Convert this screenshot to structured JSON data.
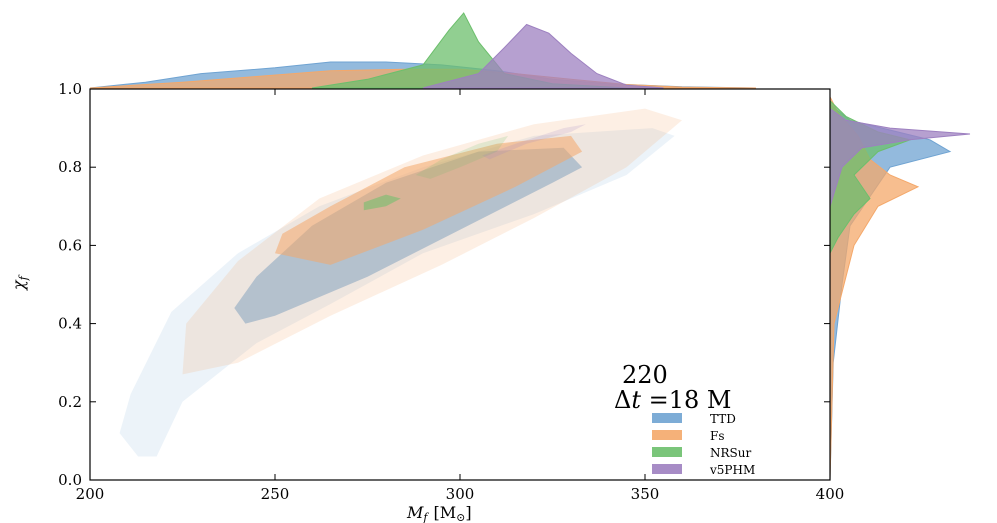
{
  "chart_data": {
    "type": "area",
    "xlabel": "M_f [M_☉]",
    "xlabel_main": "M",
    "xlabel_sub": "f",
    "xlabel_unit": "[M",
    "xlabel_unit_sub": "⊙",
    "xlabel_unit_close": "]",
    "ylabel": "χ_f",
    "ylabel_main": "χ",
    "ylabel_sub": "f",
    "xlim": [
      200,
      400
    ],
    "ylim": [
      0.0,
      1.0
    ],
    "xticks": [
      "200",
      "250",
      "300",
      "350",
      "400"
    ],
    "yticks": [
      "0.0",
      "0.2",
      "0.4",
      "0.6",
      "0.8",
      "1.0"
    ],
    "annotation": {
      "line1": "220",
      "line2_delta": "Δ",
      "line2_var": "t",
      "line2_rest": " =18 M"
    },
    "legend_position": "lower-right",
    "series": [
      {
        "name": "TTD",
        "color": "#6fa3d2",
        "marginal_x": [
          [
            200,
            0
          ],
          [
            215,
            0.02
          ],
          [
            230,
            0.05
          ],
          [
            250,
            0.07
          ],
          [
            265,
            0.09
          ],
          [
            280,
            0.09
          ],
          [
            295,
            0.08
          ],
          [
            310,
            0.06
          ],
          [
            325,
            0.03
          ],
          [
            340,
            0.015
          ],
          [
            360,
            0.004
          ],
          [
            380,
            0
          ]
        ],
        "marginal_y": [
          [
            0.0,
            0
          ],
          [
            0.3,
            0.008
          ],
          [
            0.5,
            0.03
          ],
          [
            0.65,
            0.05
          ],
          [
            0.8,
            0.15
          ],
          [
            0.84,
            0.3
          ],
          [
            0.87,
            0.25
          ],
          [
            0.92,
            0.05
          ],
          [
            0.96,
            0
          ]
        ],
        "contours": [
          [
            [
              213,
              0.06
            ],
            [
              218,
              0.06
            ],
            [
              225,
              0.2
            ],
            [
              245,
              0.35
            ],
            [
              265,
              0.45
            ],
            [
              290,
              0.58
            ],
            [
              320,
              0.68
            ],
            [
              345,
              0.78
            ],
            [
              358,
              0.88
            ],
            [
              352,
              0.9
            ],
            [
              320,
              0.88
            ],
            [
              290,
              0.8
            ],
            [
              262,
              0.7
            ],
            [
              240,
              0.58
            ],
            [
              222,
              0.43
            ],
            [
              211,
              0.22
            ],
            [
              208,
              0.12
            ]
          ],
          [
            [
              242,
              0.4
            ],
            [
              250,
              0.42
            ],
            [
              275,
              0.52
            ],
            [
              300,
              0.64
            ],
            [
              325,
              0.76
            ],
            [
              333,
              0.8
            ],
            [
              328,
              0.85
            ],
            [
              305,
              0.84
            ],
            [
              280,
              0.76
            ],
            [
              260,
              0.65
            ],
            [
              245,
              0.52
            ],
            [
              239,
              0.44
            ]
          ]
        ]
      },
      {
        "name": "Fs",
        "color": "#f4a86a",
        "marginal_x": [
          [
            200,
            0
          ],
          [
            225,
            0.02
          ],
          [
            245,
            0.04
          ],
          [
            265,
            0.06
          ],
          [
            285,
            0.065
          ],
          [
            300,
            0.065
          ],
          [
            315,
            0.05
          ],
          [
            330,
            0.03
          ],
          [
            345,
            0.012
          ],
          [
            360,
            0.003
          ],
          [
            380,
            0
          ]
        ],
        "marginal_y": [
          [
            0.0,
            0
          ],
          [
            0.4,
            0.01
          ],
          [
            0.6,
            0.06
          ],
          [
            0.7,
            0.12
          ],
          [
            0.75,
            0.22
          ],
          [
            0.78,
            0.15
          ],
          [
            0.82,
            0.1
          ],
          [
            0.88,
            0.07
          ],
          [
            0.94,
            0.02
          ],
          [
            0.98,
            0
          ]
        ],
        "contours": [
          [
            [
              225,
              0.27
            ],
            [
              240,
              0.3
            ],
            [
              265,
              0.42
            ],
            [
              295,
              0.55
            ],
            [
              320,
              0.67
            ],
            [
              345,
              0.8
            ],
            [
              360,
              0.92
            ],
            [
              350,
              0.95
            ],
            [
              320,
              0.91
            ],
            [
              290,
              0.83
            ],
            [
              262,
              0.72
            ],
            [
              240,
              0.56
            ],
            [
              226,
              0.4
            ]
          ],
          [
            [
              250,
              0.58
            ],
            [
              265,
              0.55
            ],
            [
              290,
              0.64
            ],
            [
              315,
              0.75
            ],
            [
              333,
              0.84
            ],
            [
              330,
              0.88
            ],
            [
              310,
              0.86
            ],
            [
              285,
              0.8
            ],
            [
              265,
              0.7
            ],
            [
              252,
              0.63
            ]
          ]
        ]
      },
      {
        "name": "NRSur",
        "color": "#6cbf6c",
        "marginal_x": [
          [
            260,
            0
          ],
          [
            275,
            0.03
          ],
          [
            290,
            0.08
          ],
          [
            297,
            0.2
          ],
          [
            301,
            0.26
          ],
          [
            305,
            0.16
          ],
          [
            312,
            0.05
          ],
          [
            325,
            0.015
          ],
          [
            345,
            0
          ]
        ],
        "marginal_y": [
          [
            0.58,
            0
          ],
          [
            0.62,
            0.02
          ],
          [
            0.68,
            0.06
          ],
          [
            0.72,
            0.1
          ],
          [
            0.78,
            0.06
          ],
          [
            0.84,
            0.12
          ],
          [
            0.87,
            0.2
          ],
          [
            0.89,
            0.12
          ],
          [
            0.93,
            0.04
          ],
          [
            0.97,
            0
          ]
        ],
        "contours": [
          [
            [
              288,
              0.78
            ],
            [
              295,
              0.82
            ],
            [
              305,
              0.86
            ],
            [
              313,
              0.88
            ],
            [
              310,
              0.84
            ],
            [
              300,
              0.8
            ],
            [
              292,
              0.77
            ]
          ],
          [
            [
              274,
              0.69
            ],
            [
              280,
              0.7
            ],
            [
              284,
              0.72
            ],
            [
              280,
              0.73
            ],
            [
              274,
              0.71
            ]
          ]
        ]
      },
      {
        "name": "v5PHM",
        "color": "#9d80c0",
        "marginal_x": [
          [
            290,
            0
          ],
          [
            305,
            0.05
          ],
          [
            312,
            0.14
          ],
          [
            318,
            0.22
          ],
          [
            324,
            0.19
          ],
          [
            330,
            0.12
          ],
          [
            337,
            0.05
          ],
          [
            345,
            0.01
          ],
          [
            355,
            0
          ]
        ],
        "marginal_y": [
          [
            0.7,
            0
          ],
          [
            0.8,
            0.03
          ],
          [
            0.85,
            0.08
          ],
          [
            0.87,
            0.2
          ],
          [
            0.885,
            0.35
          ],
          [
            0.9,
            0.15
          ],
          [
            0.92,
            0.04
          ],
          [
            0.95,
            0
          ]
        ],
        "contours": [
          [
            [
              306,
              0.83
            ],
            [
              315,
              0.86
            ],
            [
              328,
              0.9
            ],
            [
              334,
              0.91
            ],
            [
              330,
              0.89
            ],
            [
              318,
              0.86
            ],
            [
              308,
              0.82
            ]
          ]
        ]
      }
    ]
  }
}
